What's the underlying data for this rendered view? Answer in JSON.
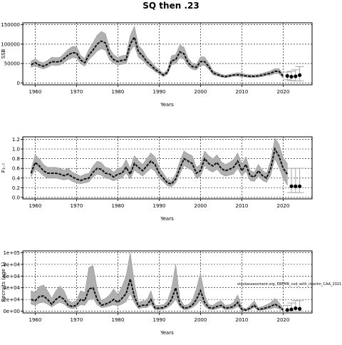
{
  "title": "SQ then .23",
  "source_note": "stockassessment.org, EBFMR_cod_with_interim_CAA_2021",
  "chart_data": [
    {
      "type": "line",
      "ylabel": "SSB",
      "xlabel": "Years",
      "xlim": [
        1957,
        2027
      ],
      "ylim": [
        -5000,
        155000
      ],
      "x_ticks": [
        1960,
        1970,
        1980,
        1990,
        2000,
        2010,
        2020
      ],
      "y_ticks": [
        0,
        50000,
        100000,
        150000
      ],
      "y_tick_labels": [
        "0",
        "50000",
        "100000",
        "150000"
      ],
      "grid": true,
      "series": [
        {
          "role": "estimate",
          "x": [
            1959,
            1960,
            1961,
            1962,
            1963,
            1964,
            1965,
            1966,
            1967,
            1968,
            1969,
            1970,
            1971,
            1972,
            1973,
            1974,
            1975,
            1976,
            1977,
            1978,
            1979,
            1980,
            1981,
            1982,
            1983,
            1984,
            1985,
            1986,
            1987,
            1988,
            1989,
            1990,
            1991,
            1992,
            1993,
            1994,
            1995,
            1996,
            1997,
            1998,
            1999,
            2000,
            2001,
            2002,
            2003,
            2004,
            2005,
            2006,
            2007,
            2008,
            2009,
            2010,
            2011,
            2012,
            2013,
            2014,
            2015,
            2016,
            2017,
            2018,
            2019,
            2020
          ],
          "y": [
            47000,
            52000,
            46000,
            43000,
            48000,
            55000,
            54000,
            55000,
            63000,
            72000,
            78000,
            77000,
            59000,
            52000,
            72000,
            85000,
            100000,
            108000,
            103000,
            73000,
            60000,
            55000,
            58000,
            60000,
            100000,
            118000,
            80000,
            70000,
            55000,
            46000,
            35000,
            28000,
            20000,
            27000,
            57000,
            60000,
            80000,
            75000,
            52000,
            42000,
            40000,
            55000,
            55000,
            42000,
            26000,
            22000,
            18000,
            16000,
            18000,
            20000,
            21000,
            20000,
            18000,
            17000,
            17000,
            18000,
            20000,
            23000,
            25000,
            30000,
            30000,
            17000
          ],
          "lower": [
            40000,
            44000,
            39000,
            36000,
            40000,
            46000,
            45000,
            46000,
            53000,
            60000,
            65000,
            64000,
            49000,
            43000,
            60000,
            70000,
            82000,
            88000,
            84000,
            60000,
            50000,
            46000,
            48000,
            50000,
            82000,
            96000,
            66000,
            58000,
            46000,
            38000,
            29000,
            23000,
            16000,
            22000,
            47000,
            49000,
            65000,
            61000,
            43000,
            35000,
            33000,
            45000,
            45000,
            35000,
            21000,
            18000,
            15000,
            13000,
            15000,
            17000,
            17000,
            16000,
            15000,
            14000,
            14000,
            15000,
            16000,
            19000,
            20000,
            24000,
            24000,
            12000
          ],
          "upper": [
            56000,
            62000,
            55000,
            52000,
            58000,
            66000,
            65000,
            66000,
            76000,
            87000,
            94000,
            93000,
            71000,
            63000,
            87000,
            104000,
            123000,
            133000,
            127000,
            89000,
            73000,
            66000,
            70000,
            72000,
            122000,
            146000,
            97000,
            85000,
            66000,
            56000,
            43000,
            34000,
            25000,
            33000,
            70000,
            73000,
            98000,
            92000,
            64000,
            51000,
            48000,
            67000,
            67000,
            51000,
            32000,
            27000,
            22000,
            20000,
            22000,
            24000,
            26000,
            25000,
            22000,
            21000,
            21000,
            22000,
            25000,
            28000,
            31000,
            37000,
            37000,
            23000
          ]
        },
        {
          "role": "forecast",
          "x": [
            2021,
            2022,
            2023,
            2024
          ],
          "y": [
            18000,
            16000,
            17000,
            20000
          ],
          "lower": [
            8000,
            6000,
            5000,
            5000
          ],
          "upper": [
            28000,
            30000,
            34000,
            42000
          ]
        }
      ]
    },
    {
      "type": "line",
      "ylabel": "F₃₋₇",
      "xlabel": "Years",
      "xlim": [
        1957,
        2027
      ],
      "ylim": [
        -0.03,
        1.25
      ],
      "x_ticks": [
        1960,
        1970,
        1980,
        1990,
        2000,
        2010,
        2020
      ],
      "y_ticks": [
        0.0,
        0.2,
        0.4,
        0.6,
        0.8,
        1.0,
        1.2
      ],
      "y_tick_labels": [
        "0.0",
        "0.2",
        "0.4",
        "0.6",
        "0.8",
        "1.0",
        "1.2"
      ],
      "grid": true,
      "series": [
        {
          "role": "estimate",
          "x": [
            1959,
            1960,
            1961,
            1962,
            1963,
            1964,
            1965,
            1966,
            1967,
            1968,
            1969,
            1970,
            1971,
            1972,
            1973,
            1974,
            1975,
            1976,
            1977,
            1978,
            1979,
            1980,
            1981,
            1982,
            1983,
            1984,
            1985,
            1986,
            1987,
            1988,
            1989,
            1990,
            1991,
            1992,
            1993,
            1994,
            1995,
            1996,
            1997,
            1998,
            1999,
            2000,
            2001,
            2002,
            2003,
            2004,
            2005,
            2006,
            2007,
            2008,
            2009,
            2010,
            2011,
            2012,
            2013,
            2014,
            2015,
            2016,
            2017,
            2018,
            2019,
            2020,
            2021
          ],
          "y": [
            0.5,
            0.72,
            0.65,
            0.55,
            0.5,
            0.5,
            0.5,
            0.48,
            0.45,
            0.48,
            0.42,
            0.38,
            0.35,
            0.38,
            0.4,
            0.52,
            0.6,
            0.58,
            0.5,
            0.48,
            0.42,
            0.48,
            0.5,
            0.62,
            0.48,
            0.7,
            0.62,
            0.55,
            0.65,
            0.75,
            0.68,
            0.5,
            0.4,
            0.3,
            0.28,
            0.38,
            0.6,
            0.8,
            0.75,
            0.7,
            0.5,
            0.55,
            0.8,
            0.7,
            0.65,
            0.72,
            0.6,
            0.55,
            0.58,
            0.62,
            0.75,
            0.55,
            0.68,
            0.45,
            0.42,
            0.55,
            0.45,
            0.4,
            0.6,
            1.0,
            0.85,
            0.6,
            0.48
          ],
          "lower": [
            0.42,
            0.58,
            0.52,
            0.45,
            0.4,
            0.4,
            0.4,
            0.38,
            0.36,
            0.38,
            0.33,
            0.3,
            0.28,
            0.3,
            0.32,
            0.42,
            0.48,
            0.46,
            0.4,
            0.38,
            0.34,
            0.38,
            0.4,
            0.5,
            0.38,
            0.56,
            0.5,
            0.44,
            0.52,
            0.6,
            0.54,
            0.4,
            0.32,
            0.24,
            0.22,
            0.3,
            0.48,
            0.66,
            0.6,
            0.56,
            0.4,
            0.44,
            0.66,
            0.56,
            0.52,
            0.58,
            0.48,
            0.44,
            0.46,
            0.48,
            0.6,
            0.44,
            0.54,
            0.35,
            0.33,
            0.44,
            0.35,
            0.31,
            0.46,
            0.8,
            0.62,
            0.4,
            0.25
          ],
          "upper": [
            0.58,
            0.88,
            0.8,
            0.68,
            0.62,
            0.62,
            0.62,
            0.6,
            0.56,
            0.6,
            0.52,
            0.48,
            0.44,
            0.48,
            0.5,
            0.65,
            0.75,
            0.72,
            0.62,
            0.6,
            0.52,
            0.6,
            0.62,
            0.78,
            0.6,
            0.86,
            0.76,
            0.68,
            0.8,
            0.92,
            0.84,
            0.62,
            0.5,
            0.38,
            0.35,
            0.48,
            0.74,
            0.96,
            0.9,
            0.86,
            0.62,
            0.68,
            0.96,
            0.86,
            0.8,
            0.88,
            0.74,
            0.68,
            0.72,
            0.78,
            0.92,
            0.68,
            0.84,
            0.56,
            0.52,
            0.68,
            0.56,
            0.5,
            0.76,
            1.22,
            1.1,
            0.82,
            0.7
          ]
        },
        {
          "role": "forecast",
          "x": [
            2022,
            2023,
            2024
          ],
          "y": [
            0.23,
            0.23,
            0.23
          ],
          "lower": [
            0.1,
            0.1,
            0.1
          ],
          "upper": [
            0.6,
            0.6,
            0.6
          ]
        }
      ]
    },
    {
      "type": "line",
      "ylabel": "Recruits (age 1)",
      "xlabel": "Years",
      "xlim": [
        1957,
        2027
      ],
      "ylim": [
        -3000,
        103000
      ],
      "x_ticks": [
        1960,
        1970,
        1980,
        1990,
        2000,
        2010,
        2020
      ],
      "y_ticks": [
        0,
        20000,
        40000,
        60000,
        80000,
        100000
      ],
      "y_tick_labels": [
        "0e+00",
        "2e+04",
        "4e+04",
        "6e+04",
        "8e+04",
        "1e+05"
      ],
      "grid": true,
      "series": [
        {
          "role": "estimate",
          "x": [
            1959,
            1960,
            1961,
            1962,
            1963,
            1964,
            1965,
            1966,
            1967,
            1968,
            1969,
            1970,
            1971,
            1972,
            1973,
            1974,
            1975,
            1976,
            1977,
            1978,
            1979,
            1980,
            1981,
            1982,
            1983,
            1984,
            1985,
            1986,
            1987,
            1988,
            1989,
            1990,
            1991,
            1992,
            1993,
            1994,
            1995,
            1996,
            1997,
            1998,
            1999,
            2000,
            2001,
            2002,
            2003,
            2004,
            2005,
            2006,
            2007,
            2008,
            2009,
            2010,
            2011,
            2012,
            2013,
            2014,
            2015,
            2016,
            2017,
            2018,
            2019,
            2020
          ],
          "y": [
            20000,
            18000,
            25000,
            26000,
            20000,
            12000,
            20000,
            25000,
            20000,
            10000,
            8000,
            10000,
            20000,
            18000,
            38000,
            40000,
            20000,
            10000,
            12000,
            15000,
            20000,
            15000,
            22000,
            30000,
            55000,
            25000,
            8000,
            10000,
            10000,
            20000,
            5000,
            5000,
            6000,
            10000,
            20000,
            40000,
            12000,
            5000,
            6000,
            10000,
            20000,
            35000,
            15000,
            6000,
            5000,
            8000,
            10000,
            5000,
            6000,
            8000,
            15000,
            3000,
            2000,
            5000,
            10000,
            3000,
            4000,
            6000,
            8000,
            12000,
            8000,
            2000
          ],
          "lower": [
            12000,
            10000,
            14000,
            15000,
            12000,
            7000,
            12000,
            15000,
            12000,
            6000,
            4000,
            6000,
            11000,
            10000,
            20000,
            22000,
            11000,
            6000,
            7000,
            9000,
            11000,
            9000,
            12000,
            16000,
            30000,
            14000,
            4000,
            6000,
            6000,
            11000,
            2500,
            2500,
            3000,
            6000,
            11000,
            20000,
            7000,
            2500,
            3000,
            6000,
            11000,
            19000,
            8000,
            3000,
            2500,
            4000,
            6000,
            2500,
            3000,
            4000,
            8000,
            1000,
            500,
            2500,
            6000,
            1500,
            2000,
            3000,
            4000,
            6000,
            4000,
            500
          ],
          "upper": [
            35000,
            32000,
            42000,
            45000,
            35000,
            22000,
            35000,
            43000,
            35000,
            18000,
            15000,
            18000,
            35000,
            32000,
            75000,
            78000,
            38000,
            18000,
            22000,
            28000,
            38000,
            28000,
            42000,
            60000,
            100000,
            48000,
            15000,
            18000,
            18000,
            35000,
            10000,
            10000,
            11000,
            18000,
            38000,
            80000,
            22000,
            10000,
            11000,
            18000,
            38000,
            65000,
            28000,
            11000,
            10000,
            15000,
            18000,
            10000,
            11000,
            15000,
            28000,
            7000,
            4000,
            10000,
            18000,
            6000,
            8000,
            11000,
            15000,
            22000,
            15000,
            5000
          ]
        },
        {
          "role": "forecast",
          "x": [
            2021,
            2022,
            2023,
            2024
          ],
          "y": [
            2000,
            3000,
            5000,
            4000
          ],
          "lower": [
            0,
            0,
            0,
            0
          ],
          "upper": [
            10000,
            14000,
            18000,
            18000
          ]
        }
      ]
    }
  ]
}
